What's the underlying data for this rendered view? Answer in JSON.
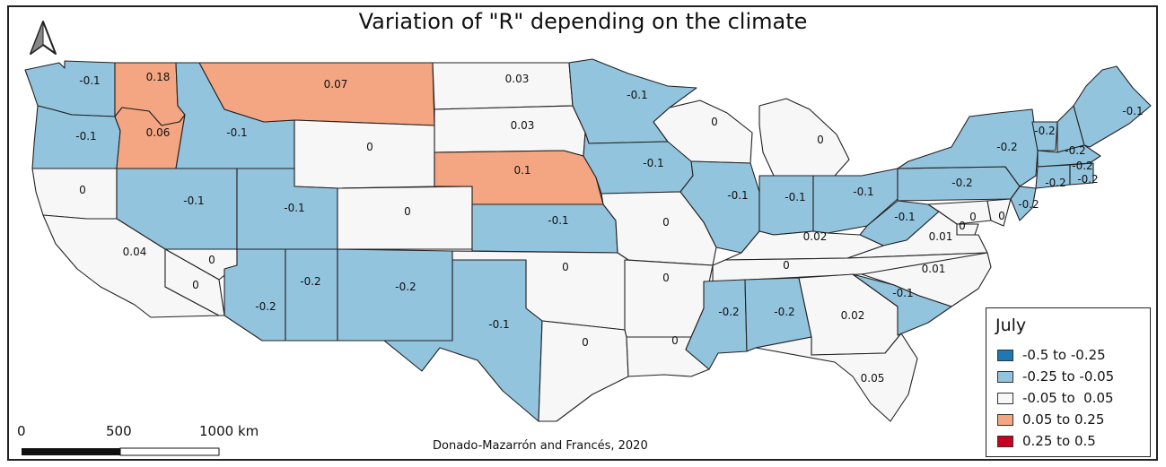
{
  "title": "Variation of \"R\" depending on the climate",
  "credit": "Donado-Mazarrón and Francés, 2020",
  "scale_bar": {
    "labels": [
      "0",
      "500",
      "1000 km"
    ]
  },
  "north_arrow": {
    "icon": "north-arrow-icon"
  },
  "legend": {
    "title": "July",
    "classes": [
      {
        "label": "-0.5 to -0.25",
        "color": "#1f78b4"
      },
      {
        "label": "-0.25 to -0.05",
        "color": "#93c4de"
      },
      {
        "label": "-0.05 to  0.05",
        "color": "#f7f7f7"
      },
      {
        "label": "0.05 to 0.25",
        "color": "#f4a582"
      },
      {
        "label": "0.25 to 0.5",
        "color": "#ca0020"
      }
    ]
  },
  "states": [
    {
      "id": "WA",
      "label": "-0.1",
      "class": 1
    },
    {
      "id": "OR",
      "label": "-0.1",
      "class": 1
    },
    {
      "id": "ID_N",
      "label": "0.18",
      "class": 3
    },
    {
      "id": "ID_S",
      "label": "0.06",
      "class": 3
    },
    {
      "id": "MT_W",
      "label": "-0.1",
      "class": 1
    },
    {
      "id": "MT",
      "label": "0.07",
      "class": 3
    },
    {
      "id": "ND",
      "label": "0.03",
      "class": 2
    },
    {
      "id": "SD",
      "label": "0.03",
      "class": 2
    },
    {
      "id": "MN",
      "label": "-0.1",
      "class": 1
    },
    {
      "id": "WY",
      "label": "0",
      "class": 2
    },
    {
      "id": "NE",
      "label": "0.1",
      "class": 3
    },
    {
      "id": "IA",
      "label": "-0.1",
      "class": 1
    },
    {
      "id": "WI",
      "label": "0",
      "class": 2
    },
    {
      "id": "MI",
      "label": "0",
      "class": 2
    },
    {
      "id": "CA_N",
      "label": "0",
      "class": 2
    },
    {
      "id": "NV",
      "label": "-0.1",
      "class": 1
    },
    {
      "id": "UT",
      "label": "-0.1",
      "class": 1
    },
    {
      "id": "CO",
      "label": "0",
      "class": 2
    },
    {
      "id": "KS",
      "label": "-0.1",
      "class": 1
    },
    {
      "id": "MO",
      "label": "0",
      "class": 2
    },
    {
      "id": "IL",
      "label": "-0.1",
      "class": 1
    },
    {
      "id": "IN",
      "label": "-0.1",
      "class": 1
    },
    {
      "id": "OH",
      "label": "-0.1",
      "class": 1
    },
    {
      "id": "PA",
      "label": "-0.2",
      "class": 1
    },
    {
      "id": "NY",
      "label": "-0.2",
      "class": 1
    },
    {
      "id": "VT",
      "label": "-0.2",
      "class": 1
    },
    {
      "id": "NH",
      "label": "-0.2",
      "class": 1
    },
    {
      "id": "ME",
      "label": "-0.1",
      "class": 1
    },
    {
      "id": "MA",
      "label": "-0.2",
      "class": 1
    },
    {
      "id": "CT",
      "label": "-0.2",
      "class": 1
    },
    {
      "id": "RI",
      "label": "-0.2",
      "class": 1
    },
    {
      "id": "NJ",
      "label": "-0.2",
      "class": 1
    },
    {
      "id": "WV",
      "label": "-0.1",
      "class": 1
    },
    {
      "id": "MD",
      "label": "0",
      "class": 2
    },
    {
      "id": "DE",
      "label": "0",
      "class": 2
    },
    {
      "id": "DC",
      "label": "0",
      "class": 2
    },
    {
      "id": "VA",
      "label": "0.01",
      "class": 2
    },
    {
      "id": "KY",
      "label": "0.02",
      "class": 2
    },
    {
      "id": "CA",
      "label": "0.04",
      "class": 2
    },
    {
      "id": "NV_S",
      "label": "0",
      "class": 2
    },
    {
      "id": "CA_SE",
      "label": "0",
      "class": 2
    },
    {
      "id": "AZ",
      "label": "-0.2",
      "class": 1
    },
    {
      "id": "AZ_E",
      "label": "-0.2",
      "class": 1
    },
    {
      "id": "NM",
      "label": "-0.2",
      "class": 1
    },
    {
      "id": "OK",
      "label": "0",
      "class": 2
    },
    {
      "id": "AR",
      "label": "0",
      "class": 2
    },
    {
      "id": "TN",
      "label": "0",
      "class": 2
    },
    {
      "id": "NC",
      "label": "0.01",
      "class": 2
    },
    {
      "id": "TX_W",
      "label": "-0.1",
      "class": 1
    },
    {
      "id": "TX",
      "label": "0",
      "class": 2
    },
    {
      "id": "LA",
      "label": "0",
      "class": 2
    },
    {
      "id": "MS",
      "label": "-0.2",
      "class": 1
    },
    {
      "id": "AL",
      "label": "-0.2",
      "class": 1
    },
    {
      "id": "GA",
      "label": "0.02",
      "class": 2
    },
    {
      "id": "SC",
      "label": "-0.1",
      "class": 1
    },
    {
      "id": "FL",
      "label": "0.05",
      "class": 2
    }
  ]
}
